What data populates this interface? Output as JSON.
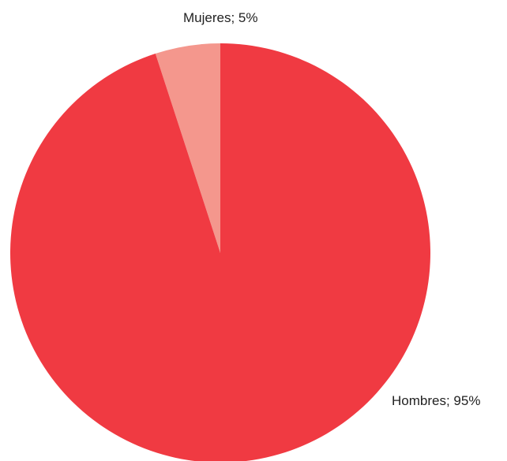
{
  "chart_data": {
    "type": "pie",
    "title": "",
    "slices": [
      {
        "label": "Mujeres",
        "value": 5,
        "display": "Mujeres; 5%",
        "color": "#f4978d"
      },
      {
        "label": "Hombres",
        "value": 95,
        "display": "Hombres; 95%",
        "color": "#f03a42"
      }
    ],
    "start_angle_deg": 0,
    "direction": "counterclockwise"
  }
}
